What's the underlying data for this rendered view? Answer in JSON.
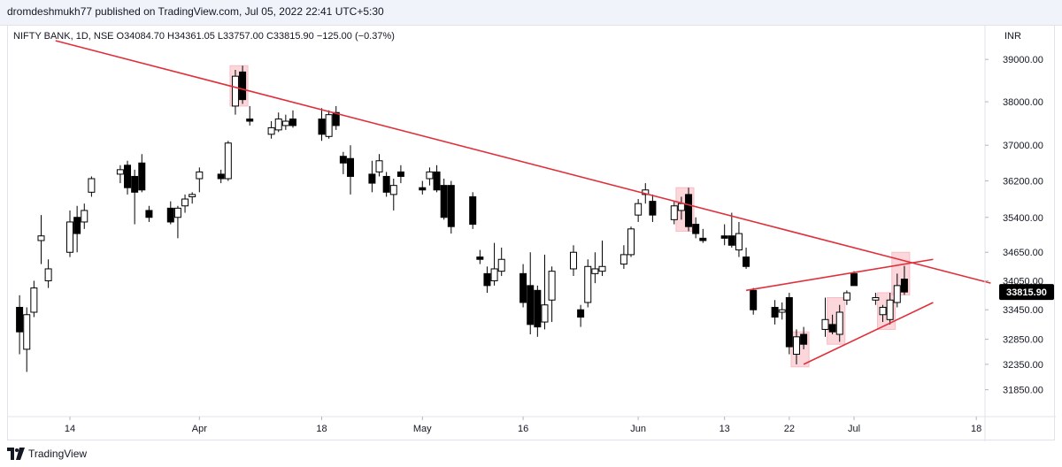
{
  "header": {
    "publish_line": "dromdeshmukh77 published on TradingView.com, Jul 05, 2022 22:41 UTC+5:30"
  },
  "footer": {
    "brand": "TradingView"
  },
  "chart_data": {
    "type": "candlestick",
    "legend_text": "NIFTY BANK, 1D, NSE  O34084.70  H34361.05  L33757.00  C33815.90  −125.00 (−0.37%)",
    "currency": "INR",
    "last_price_label": "33815.90",
    "y_ticks": [
      39000,
      38000,
      37000,
      36200,
      35400,
      34650,
      34050,
      33450,
      32850,
      32350,
      31850
    ],
    "y_tick_labels": [
      "39000.00",
      "38000.00",
      "37000.00",
      "36200.00",
      "35400.00",
      "34650.00",
      "34050.00",
      "33450.00",
      "32850.00",
      "32350.00",
      "31850.00"
    ],
    "y_scale": "log",
    "ylim": [
      31500,
      39600
    ],
    "x_ticks": [
      {
        "label": "14",
        "date": "2022-03-14"
      },
      {
        "label": "Apr",
        "date": "2022-04-01"
      },
      {
        "label": "18",
        "date": "2022-04-18"
      },
      {
        "label": "May",
        "date": "2022-05-02"
      },
      {
        "label": "16",
        "date": "2022-05-16"
      },
      {
        "label": "Jun",
        "date": "2022-06-01"
      },
      {
        "label": "13",
        "date": "2022-06-13"
      },
      {
        "label": "22",
        "date": "2022-06-22"
      },
      {
        "label": "Jul",
        "date": "2022-07-01"
      },
      {
        "label": "18",
        "date": "2022-07-18"
      }
    ],
    "candles": [
      {
        "date": "2022-03-07",
        "o": 33500,
        "h": 33750,
        "l": 32550,
        "c": 33000
      },
      {
        "date": "2022-03-08",
        "o": 32650,
        "h": 33500,
        "l": 32200,
        "c": 33350
      },
      {
        "date": "2022-03-09",
        "o": 33400,
        "h": 34050,
        "l": 33300,
        "c": 33900
      },
      {
        "date": "2022-03-10",
        "o": 34900,
        "h": 35450,
        "l": 34400,
        "c": 35000
      },
      {
        "date": "2022-03-11",
        "o": 34050,
        "h": 34500,
        "l": 33900,
        "c": 34300
      },
      {
        "date": "2022-03-14",
        "o": 34650,
        "h": 35550,
        "l": 34550,
        "c": 35300
      },
      {
        "date": "2022-03-15",
        "o": 35400,
        "h": 35650,
        "l": 34650,
        "c": 35050
      },
      {
        "date": "2022-03-16",
        "o": 35300,
        "h": 35700,
        "l": 35150,
        "c": 35550
      },
      {
        "date": "2022-03-17",
        "o": 35950,
        "h": 36300,
        "l": 35850,
        "c": 36250
      },
      {
        "date": "2022-03-21",
        "o": 36350,
        "h": 36550,
        "l": 36150,
        "c": 36450
      },
      {
        "date": "2022-03-22",
        "o": 36550,
        "h": 36650,
        "l": 35900,
        "c": 36050
      },
      {
        "date": "2022-03-23",
        "o": 36300,
        "h": 36450,
        "l": 35250,
        "c": 35950
      },
      {
        "date": "2022-03-24",
        "o": 36600,
        "h": 36800,
        "l": 35950,
        "c": 36000
      },
      {
        "date": "2022-03-25",
        "o": 35550,
        "h": 35650,
        "l": 35300,
        "c": 35400
      },
      {
        "date": "2022-03-28",
        "o": 35600,
        "h": 35750,
        "l": 35250,
        "c": 35300
      },
      {
        "date": "2022-03-29",
        "o": 35400,
        "h": 35650,
        "l": 34950,
        "c": 35600
      },
      {
        "date": "2022-03-30",
        "o": 35650,
        "h": 35900,
        "l": 35500,
        "c": 35800
      },
      {
        "date": "2022-03-31",
        "o": 35850,
        "h": 35950,
        "l": 35700,
        "c": 35900
      },
      {
        "date": "2022-04-01",
        "o": 36250,
        "h": 36500,
        "l": 35950,
        "c": 36400
      },
      {
        "date": "2022-04-04",
        "o": 36350,
        "h": 36450,
        "l": 36150,
        "c": 36250
      },
      {
        "date": "2022-04-05",
        "o": 36250,
        "h": 37100,
        "l": 36200,
        "c": 37050
      },
      {
        "date": "2022-04-06",
        "o": 37900,
        "h": 38750,
        "l": 37700,
        "c": 38600
      },
      {
        "date": "2022-04-07",
        "o": 38700,
        "h": 38850,
        "l": 37950,
        "c": 38050
      },
      {
        "date": "2022-04-08",
        "o": 37600,
        "h": 37900,
        "l": 37450,
        "c": 37550
      },
      {
        "date": "2022-04-11",
        "o": 37250,
        "h": 37550,
        "l": 37150,
        "c": 37400
      },
      {
        "date": "2022-04-12",
        "o": 37350,
        "h": 37750,
        "l": 37300,
        "c": 37600
      },
      {
        "date": "2022-04-13",
        "o": 37450,
        "h": 37700,
        "l": 37350,
        "c": 37550
      },
      {
        "date": "2022-04-14",
        "o": 37600,
        "h": 37800,
        "l": 37400,
        "c": 37450
      },
      {
        "date": "2022-04-18",
        "o": 37600,
        "h": 37850,
        "l": 37100,
        "c": 37250
      },
      {
        "date": "2022-04-19",
        "o": 37200,
        "h": 37800,
        "l": 37150,
        "c": 37700
      },
      {
        "date": "2022-04-20",
        "o": 37750,
        "h": 37900,
        "l": 37350,
        "c": 37450
      },
      {
        "date": "2022-04-21",
        "o": 36750,
        "h": 36850,
        "l": 36350,
        "c": 36600
      },
      {
        "date": "2022-04-22",
        "o": 36700,
        "h": 37000,
        "l": 35900,
        "c": 36300
      },
      {
        "date": "2022-04-25",
        "o": 36350,
        "h": 36650,
        "l": 35950,
        "c": 36150
      },
      {
        "date": "2022-04-26",
        "o": 36400,
        "h": 36800,
        "l": 36300,
        "c": 36650
      },
      {
        "date": "2022-04-27",
        "o": 36300,
        "h": 36400,
        "l": 35850,
        "c": 35950
      },
      {
        "date": "2022-04-28",
        "o": 35900,
        "h": 36250,
        "l": 35550,
        "c": 36100
      },
      {
        "date": "2022-04-29",
        "o": 36400,
        "h": 36550,
        "l": 36150,
        "c": 36300
      },
      {
        "date": "2022-05-02",
        "o": 36050,
        "h": 36200,
        "l": 35900,
        "c": 36000
      },
      {
        "date": "2022-05-03",
        "o": 36250,
        "h": 36500,
        "l": 36100,
        "c": 36400
      },
      {
        "date": "2022-05-04",
        "o": 36400,
        "h": 36550,
        "l": 35950,
        "c": 36000
      },
      {
        "date": "2022-05-05",
        "o": 36100,
        "h": 36250,
        "l": 35350,
        "c": 35400
      },
      {
        "date": "2022-05-06",
        "o": 36100,
        "h": 36200,
        "l": 35050,
        "c": 35200
      },
      {
        "date": "2022-05-09",
        "o": 35850,
        "h": 35950,
        "l": 35150,
        "c": 35250
      },
      {
        "date": "2022-05-10",
        "o": 34550,
        "h": 34700,
        "l": 34400,
        "c": 34500
      },
      {
        "date": "2022-05-11",
        "o": 34200,
        "h": 34350,
        "l": 33800,
        "c": 33950
      },
      {
        "date": "2022-05-12",
        "o": 34050,
        "h": 34850,
        "l": 33950,
        "c": 34300
      },
      {
        "date": "2022-05-13",
        "o": 34250,
        "h": 34750,
        "l": 34150,
        "c": 34500
      },
      {
        "date": "2022-05-16",
        "o": 34200,
        "h": 34400,
        "l": 33500,
        "c": 33600
      },
      {
        "date": "2022-05-17",
        "o": 33950,
        "h": 34650,
        "l": 32950,
        "c": 33150
      },
      {
        "date": "2022-05-18",
        "o": 33850,
        "h": 33950,
        "l": 32900,
        "c": 33100
      },
      {
        "date": "2022-05-19",
        "o": 33200,
        "h": 34600,
        "l": 33050,
        "c": 33550
      },
      {
        "date": "2022-05-20",
        "o": 33650,
        "h": 34350,
        "l": 33200,
        "c": 34250
      },
      {
        "date": "2022-05-23",
        "o": 34300,
        "h": 34800,
        "l": 34150,
        "c": 34650
      },
      {
        "date": "2022-05-24",
        "o": 33450,
        "h": 33550,
        "l": 33100,
        "c": 33300
      },
      {
        "date": "2022-05-25",
        "o": 33600,
        "h": 34500,
        "l": 33500,
        "c": 34350
      },
      {
        "date": "2022-05-26",
        "o": 34200,
        "h": 34650,
        "l": 34000,
        "c": 34300
      },
      {
        "date": "2022-05-27",
        "o": 34250,
        "h": 34900,
        "l": 34150,
        "c": 34350
      },
      {
        "date": "2022-05-30",
        "o": 34400,
        "h": 34800,
        "l": 34300,
        "c": 34600
      },
      {
        "date": "2022-05-31",
        "o": 34600,
        "h": 35200,
        "l": 34550,
        "c": 35150
      },
      {
        "date": "2022-06-01",
        "o": 35450,
        "h": 35800,
        "l": 35300,
        "c": 35700
      },
      {
        "date": "2022-06-02",
        "o": 35900,
        "h": 36150,
        "l": 35700,
        "c": 36000
      },
      {
        "date": "2022-06-03",
        "o": 35750,
        "h": 35900,
        "l": 35300,
        "c": 35450
      },
      {
        "date": "2022-06-06",
        "o": 35350,
        "h": 35750,
        "l": 35250,
        "c": 35650
      },
      {
        "date": "2022-06-07",
        "o": 35550,
        "h": 35850,
        "l": 35350,
        "c": 35700
      },
      {
        "date": "2022-06-08",
        "o": 35900,
        "h": 36050,
        "l": 35100,
        "c": 35200
      },
      {
        "date": "2022-06-09",
        "o": 35250,
        "h": 35400,
        "l": 34950,
        "c": 35050
      },
      {
        "date": "2022-06-10",
        "o": 34950,
        "h": 35150,
        "l": 34850,
        "c": 34900
      },
      {
        "date": "2022-06-13",
        "o": 35000,
        "h": 35250,
        "l": 34800,
        "c": 34950
      },
      {
        "date": "2022-06-14",
        "o": 35000,
        "h": 35500,
        "l": 34750,
        "c": 34800
      },
      {
        "date": "2022-06-15",
        "o": 34700,
        "h": 35300,
        "l": 34550,
        "c": 35050
      },
      {
        "date": "2022-06-16",
        "o": 34550,
        "h": 34750,
        "l": 34300,
        "c": 34350
      },
      {
        "date": "2022-06-17",
        "o": 33850,
        "h": 33900,
        "l": 33350,
        "c": 33450
      },
      {
        "date": "2022-06-20",
        "o": 33500,
        "h": 33650,
        "l": 33150,
        "c": 33300
      },
      {
        "date": "2022-06-21",
        "o": 33400,
        "h": 33600,
        "l": 33250,
        "c": 33450
      },
      {
        "date": "2022-06-22",
        "o": 33700,
        "h": 33800,
        "l": 32550,
        "c": 32700
      },
      {
        "date": "2022-06-23",
        "o": 32550,
        "h": 33050,
        "l": 32350,
        "c": 32900
      },
      {
        "date": "2022-06-24",
        "o": 32950,
        "h": 33100,
        "l": 32650,
        "c": 32750
      },
      {
        "date": "2022-06-27",
        "o": 33050,
        "h": 33700,
        "l": 32900,
        "c": 33250
      },
      {
        "date": "2022-06-28",
        "o": 33150,
        "h": 33350,
        "l": 32950,
        "c": 33000
      },
      {
        "date": "2022-06-29",
        "o": 32950,
        "h": 33550,
        "l": 32800,
        "c": 33400
      },
      {
        "date": "2022-06-30",
        "o": 33650,
        "h": 33850,
        "l": 33550,
        "c": 33800
      },
      {
        "date": "2022-07-01",
        "o": 34200,
        "h": 34250,
        "l": 33950,
        "c": 33950
      },
      {
        "date": "2022-07-04",
        "o": 33650,
        "h": 33800,
        "l": 33550,
        "c": 33700
      },
      {
        "date": "2022-07-05",
        "o": 33350,
        "h": 33550,
        "l": 33200,
        "c": 33500
      },
      {
        "date": "2022-07-06",
        "o": 33250,
        "h": 33800,
        "l": 33150,
        "c": 33650
      },
      {
        "date": "2022-07-07",
        "o": 33600,
        "h": 34200,
        "l": 33500,
        "c": 33950
      },
      {
        "date": "2022-07-08",
        "o": 34084.7,
        "h": 34361.05,
        "l": 33757.0,
        "c": 33815.9
      }
    ],
    "trendlines": [
      {
        "name": "falling-resistance",
        "from": {
          "date": "2022-03-12",
          "price": 39450
        },
        "to": {
          "date": "2022-07-20",
          "price": 34000
        }
      },
      {
        "name": "wedge-upper",
        "from": {
          "date": "2022-06-16",
          "price": 33850
        },
        "to": {
          "date": "2022-07-12",
          "price": 34500
        }
      },
      {
        "name": "wedge-lower",
        "from": {
          "date": "2022-06-24",
          "price": 32350
        },
        "to": {
          "date": "2022-07-12",
          "price": 33600
        }
      }
    ],
    "highlight_boxes": [
      {
        "from": "2022-04-06",
        "to": "2022-04-07",
        "low": 37900,
        "high": 38850
      },
      {
        "from": "2022-06-07",
        "to": "2022-06-08",
        "low": 35100,
        "high": 36050
      },
      {
        "from": "2022-06-23",
        "to": "2022-06-24",
        "low": 32300,
        "high": 33000
      },
      {
        "from": "2022-06-28",
        "to": "2022-06-29",
        "low": 32750,
        "high": 33700
      },
      {
        "from": "2022-07-05",
        "to": "2022-07-06",
        "low": 33050,
        "high": 33800
      },
      {
        "from": "2022-07-07",
        "to": "2022-07-08",
        "low": 33757,
        "high": 34650
      }
    ],
    "colors": {
      "up_body": "#ffffff",
      "down_body": "#000000",
      "candle_outline": "#000000",
      "trendline": "#e0303c",
      "highlight": "#f8bcc4",
      "price_tag": "#000000",
      "axis_text": "#131722",
      "divider": "#e0e3eb"
    }
  }
}
